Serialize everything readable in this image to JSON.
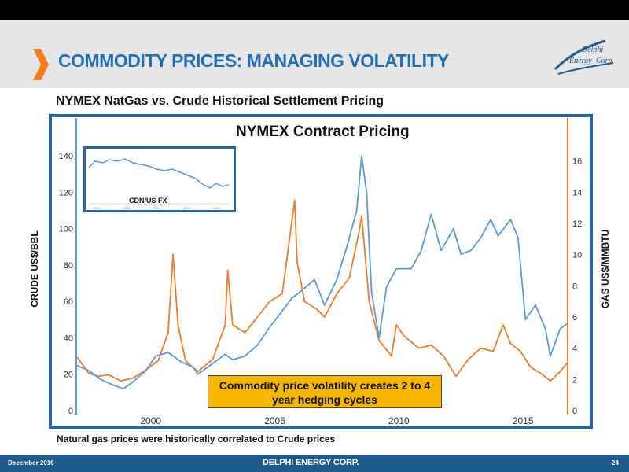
{
  "slide": {
    "title": "COMMODITY PRICES: MANAGING VOLATILITY",
    "subtitle": "NYMEX NatGas vs. Crude Historical Settlement Pricing",
    "footnote": "Natural gas prices were historically correlated to Crude prices",
    "logo_text": [
      "Delphi",
      "Energy",
      "Corp."
    ],
    "footer": {
      "date": "December 2016",
      "brand": "DELPHI ENERGY CORP.",
      "page": "24"
    }
  },
  "colors": {
    "accent": "#1f6fb2",
    "chevron": "#f07c1b",
    "crude": "#5b9bd5",
    "gas": "#ed7d31",
    "callout": "#f6b700",
    "frame": "#2466a6"
  },
  "chart_data": {
    "type": "line",
    "title": "NYMEX Contract Pricing",
    "ylabel_left": "CRUDE US$/BBL",
    "ylabel_right": "GAS US$/MMBTU",
    "x_range": [
      1997,
      2016.8
    ],
    "x_ticks": [
      2000,
      2005,
      2010,
      2015
    ],
    "y_left_range": [
      0,
      150
    ],
    "y_left_ticks": [
      0,
      20,
      40,
      60,
      80,
      100,
      120,
      140
    ],
    "y_right_range": [
      0,
      17.5
    ],
    "y_right_ticks": [
      0,
      2,
      4,
      6,
      8,
      10,
      12,
      14,
      16
    ],
    "grid": false,
    "series": [
      {
        "name": "Crude",
        "axis": "left",
        "x": [
          1997.0,
          1997.5,
          1998.0,
          1998.5,
          1998.9,
          1999.3,
          1999.8,
          2000.2,
          2000.7,
          2001.2,
          2001.7,
          2001.9,
          2002.5,
          2003.0,
          2003.3,
          2003.8,
          2004.3,
          2004.8,
          2005.2,
          2005.7,
          2006.0,
          2006.6,
          2007.0,
          2007.5,
          2007.9,
          2008.3,
          2008.5,
          2008.7,
          2008.9,
          2009.2,
          2009.5,
          2009.9,
          2010.5,
          2010.9,
          2011.3,
          2011.7,
          2012.2,
          2012.5,
          2012.9,
          2013.3,
          2013.7,
          2014.0,
          2014.5,
          2014.8,
          2015.1,
          2015.5,
          2015.9,
          2016.1,
          2016.5,
          2016.8
        ],
        "y": [
          25,
          22,
          17,
          14,
          12,
          16,
          22,
          30,
          32,
          27,
          24,
          20,
          26,
          31,
          28,
          30,
          36,
          46,
          53,
          62,
          65,
          72,
          58,
          72,
          90,
          110,
          140,
          120,
          65,
          40,
          68,
          78,
          78,
          88,
          108,
          88,
          100,
          86,
          88,
          95,
          105,
          96,
          105,
          95,
          50,
          58,
          45,
          30,
          45,
          48
        ]
      },
      {
        "name": "Natural Gas",
        "axis": "right",
        "x": [
          1997.0,
          1997.5,
          1997.9,
          1998.3,
          1998.8,
          1999.3,
          1999.8,
          2000.3,
          2000.7,
          2000.9,
          2001.1,
          2001.4,
          2001.9,
          2002.5,
          2003.0,
          2003.1,
          2003.3,
          2003.8,
          2004.3,
          2004.8,
          2005.3,
          2005.8,
          2005.9,
          2006.2,
          2006.7,
          2007.0,
          2007.5,
          2008.0,
          2008.4,
          2008.5,
          2008.8,
          2009.2,
          2009.7,
          2009.9,
          2010.2,
          2010.8,
          2011.3,
          2011.8,
          2012.3,
          2012.8,
          2013.3,
          2013.8,
          2014.2,
          2014.5,
          2014.9,
          2015.3,
          2015.8,
          2016.1,
          2016.5,
          2016.8
        ],
        "y": [
          3.5,
          2.4,
          2.2,
          2.3,
          1.9,
          2.1,
          2.6,
          3.2,
          5.0,
          10.0,
          5.5,
          3.2,
          2.5,
          3.3,
          5.5,
          9.0,
          5.5,
          5.0,
          6.0,
          7.0,
          7.5,
          13.5,
          9.5,
          7.0,
          6.5,
          6.0,
          7.5,
          8.5,
          11.5,
          12.5,
          7.0,
          4.5,
          3.5,
          5.5,
          4.8,
          4.0,
          4.2,
          3.5,
          2.2,
          3.3,
          4.0,
          3.8,
          5.5,
          4.3,
          3.8,
          2.8,
          2.3,
          1.9,
          2.5,
          3.1
        ]
      }
    ],
    "inset": {
      "label": "CDN/US FX",
      "x_ticks": [
        "2010",
        "2012",
        "2014",
        "2015",
        "2016"
      ]
    },
    "annotation": "Commodity price volatility creates 2 to 4 year hedging cycles"
  }
}
